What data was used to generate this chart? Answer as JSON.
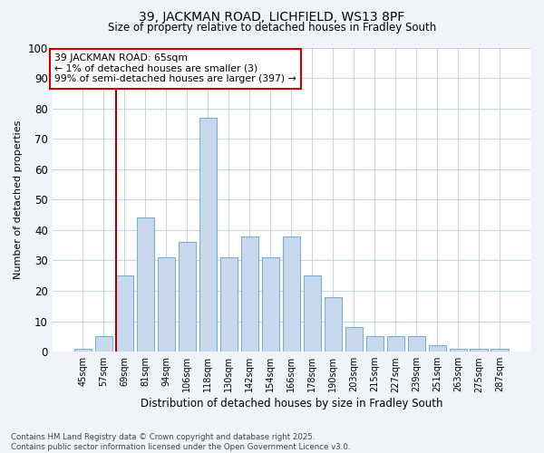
{
  "title_line1": "39, JACKMAN ROAD, LICHFIELD, WS13 8PF",
  "title_line2": "Size of property relative to detached houses in Fradley South",
  "xlabel": "Distribution of detached houses by size in Fradley South",
  "ylabel": "Number of detached properties",
  "bar_color": "#c9d9ed",
  "bar_edge_color": "#7bafd4",
  "categories": [
    "45sqm",
    "57sqm",
    "69sqm",
    "81sqm",
    "94sqm",
    "106sqm",
    "118sqm",
    "130sqm",
    "142sqm",
    "154sqm",
    "166sqm",
    "178sqm",
    "190sqm",
    "203sqm",
    "215sqm",
    "227sqm",
    "239sqm",
    "251sqm",
    "263sqm",
    "275sqm",
    "287sqm"
  ],
  "values": [
    1,
    5,
    25,
    44,
    31,
    36,
    77,
    31,
    38,
    31,
    38,
    25,
    18,
    8,
    5,
    5,
    5,
    2,
    1,
    1,
    1
  ],
  "ylim": [
    0,
    100
  ],
  "yticks": [
    0,
    10,
    20,
    30,
    40,
    50,
    60,
    70,
    80,
    90,
    100
  ],
  "vline_x": 1.6,
  "vline_color": "#aa0000",
  "annotation_text": "39 JACKMAN ROAD: 65sqm\n← 1% of detached houses are smaller (3)\n99% of semi-detached houses are larger (397) →",
  "annotation_box_color": "#ffffff",
  "annotation_box_edge": "#cc0000",
  "footer_line1": "Contains HM Land Registry data © Crown copyright and database right 2025.",
  "footer_line2": "Contains public sector information licensed under the Open Government Licence v3.0.",
  "background_color": "#f0f4f8",
  "plot_background": "#ffffff",
  "grid_color": "#b8cfe0"
}
